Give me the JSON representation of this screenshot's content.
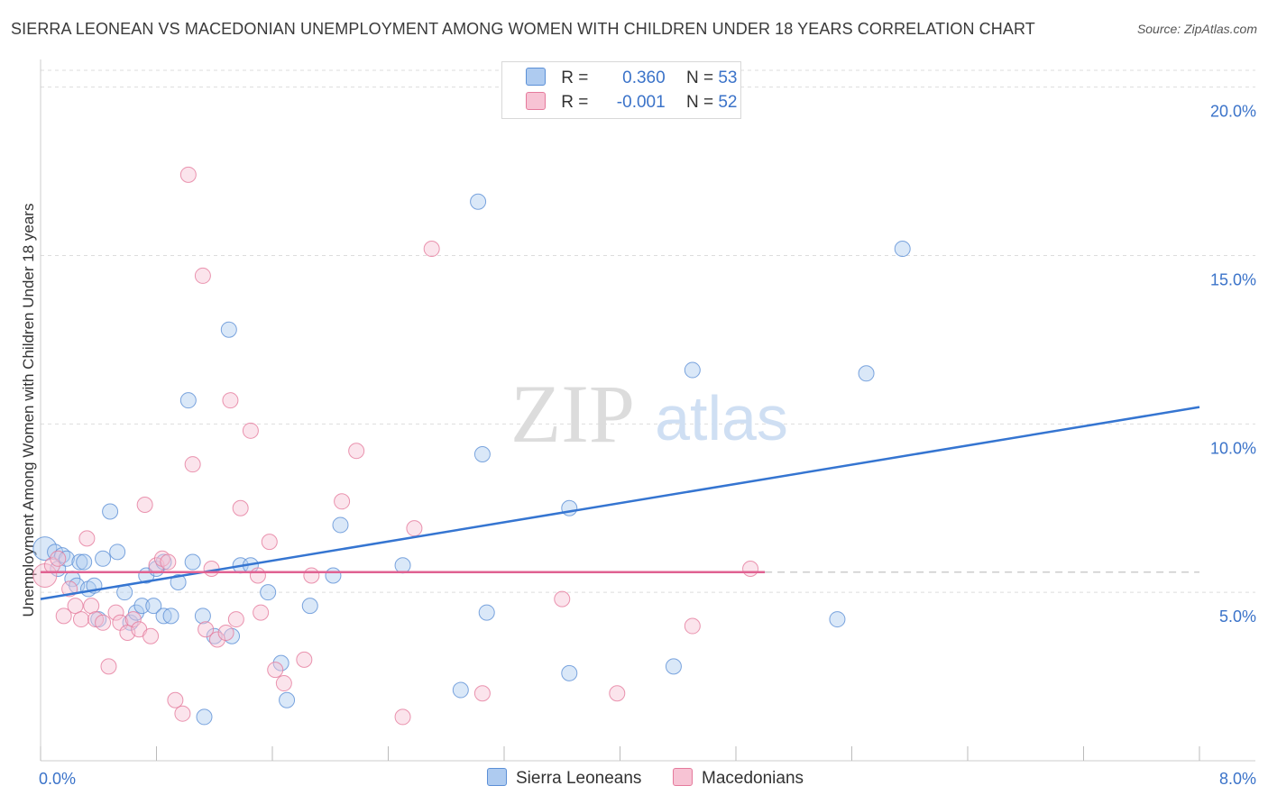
{
  "header": {
    "title": "SIERRA LEONEAN VS MACEDONIAN UNEMPLOYMENT AMONG WOMEN WITH CHILDREN UNDER 18 YEARS CORRELATION CHART",
    "source": "Source: ZipAtlas.com"
  },
  "watermark": {
    "zip": "ZIP",
    "atlas": "atlas"
  },
  "legend": {
    "r_key": "R =",
    "n_key": "N =",
    "series": [
      {
        "name": "Sierra Leoneans",
        "r": "0.360",
        "n": "53",
        "fill": "#aecbf0",
        "stroke": "#5b8fd6"
      },
      {
        "name": "Macedonians",
        "r": "-0.001",
        "n": "52",
        "fill": "#f7c3d4",
        "stroke": "#e57a9c"
      }
    ]
  },
  "chart_data": {
    "type": "scatter",
    "title": "SIERRA LEONEAN VS MACEDONIAN UNEMPLOYMENT AMONG WOMEN WITH CHILDREN UNDER 18 YEARS CORRELATION CHART",
    "xlabel": "",
    "ylabel": "Unemployment Among Women with Children Under 18 years",
    "xlim": [
      0,
      8
    ],
    "ylim": [
      0,
      20.5
    ],
    "x_tick_labels": [
      "0.0%",
      "8.0%"
    ],
    "y_ticks": [
      5,
      10,
      15,
      20
    ],
    "y_tick_labels": [
      "5.0%",
      "10.0%",
      "15.0%",
      "20.0%"
    ],
    "grid": true,
    "series": [
      {
        "name": "Sierra Leoneans",
        "color": "#5b8fd6",
        "trend": {
          "x0": 0.0,
          "y0": 4.8,
          "x1": 8.0,
          "y1": 10.5,
          "color": "#3575d1"
        },
        "points": [
          [
            0.03,
            6.3
          ],
          [
            0.1,
            6.2
          ],
          [
            0.12,
            5.7
          ],
          [
            0.15,
            6.1
          ],
          [
            0.18,
            6.0
          ],
          [
            0.22,
            5.4
          ],
          [
            0.25,
            5.2
          ],
          [
            0.27,
            5.9
          ],
          [
            0.3,
            5.9
          ],
          [
            0.33,
            5.1
          ],
          [
            0.37,
            5.2
          ],
          [
            0.4,
            4.2
          ],
          [
            0.43,
            6.0
          ],
          [
            0.48,
            7.4
          ],
          [
            0.53,
            6.2
          ],
          [
            0.58,
            5.0
          ],
          [
            0.62,
            4.1
          ],
          [
            0.66,
            4.4
          ],
          [
            0.7,
            4.6
          ],
          [
            0.73,
            5.5
          ],
          [
            0.78,
            4.6
          ],
          [
            0.8,
            5.7
          ],
          [
            0.85,
            4.3
          ],
          [
            0.85,
            5.9
          ],
          [
            0.9,
            4.3
          ],
          [
            0.95,
            5.3
          ],
          [
            1.02,
            10.7
          ],
          [
            1.05,
            5.9
          ],
          [
            1.12,
            4.3
          ],
          [
            1.13,
            1.3
          ],
          [
            1.2,
            3.7
          ],
          [
            1.3,
            12.8
          ],
          [
            1.32,
            3.7
          ],
          [
            1.38,
            5.8
          ],
          [
            1.45,
            5.8
          ],
          [
            1.57,
            5.0
          ],
          [
            1.66,
            2.9
          ],
          [
            1.7,
            1.8
          ],
          [
            1.86,
            4.6
          ],
          [
            2.02,
            5.5
          ],
          [
            2.07,
            7.0
          ],
          [
            2.5,
            5.8
          ],
          [
            2.9,
            2.1
          ],
          [
            3.02,
            16.6
          ],
          [
            3.05,
            9.1
          ],
          [
            3.08,
            4.4
          ],
          [
            3.65,
            2.6
          ],
          [
            3.65,
            7.5
          ],
          [
            4.37,
            2.8
          ],
          [
            4.5,
            11.6
          ],
          [
            5.5,
            4.2
          ],
          [
            5.7,
            11.5
          ],
          [
            5.95,
            15.2
          ]
        ]
      },
      {
        "name": "Macedonians",
        "color": "#e57a9c",
        "trend": {
          "x0": 0.0,
          "y0": 5.6,
          "x1": 5.0,
          "y1": 5.6,
          "color": "#e06292",
          "dashed_to": 8.0
        },
        "points": [
          [
            0.03,
            5.5
          ],
          [
            0.08,
            5.8
          ],
          [
            0.12,
            6.0
          ],
          [
            0.16,
            4.3
          ],
          [
            0.2,
            5.1
          ],
          [
            0.24,
            4.6
          ],
          [
            0.28,
            4.2
          ],
          [
            0.32,
            6.6
          ],
          [
            0.35,
            4.6
          ],
          [
            0.38,
            4.2
          ],
          [
            0.43,
            4.1
          ],
          [
            0.47,
            2.8
          ],
          [
            0.52,
            4.4
          ],
          [
            0.55,
            4.1
          ],
          [
            0.6,
            3.8
          ],
          [
            0.64,
            4.2
          ],
          [
            0.68,
            3.9
          ],
          [
            0.72,
            7.6
          ],
          [
            0.76,
            3.7
          ],
          [
            0.8,
            5.8
          ],
          [
            0.84,
            6.0
          ],
          [
            0.88,
            5.9
          ],
          [
            0.93,
            1.8
          ],
          [
            0.98,
            1.4
          ],
          [
            1.02,
            17.4
          ],
          [
            1.05,
            8.8
          ],
          [
            1.12,
            14.4
          ],
          [
            1.14,
            3.9
          ],
          [
            1.18,
            5.7
          ],
          [
            1.22,
            3.6
          ],
          [
            1.28,
            3.8
          ],
          [
            1.31,
            10.7
          ],
          [
            1.35,
            4.2
          ],
          [
            1.38,
            7.5
          ],
          [
            1.45,
            9.8
          ],
          [
            1.5,
            5.5
          ],
          [
            1.52,
            4.4
          ],
          [
            1.58,
            6.5
          ],
          [
            1.62,
            2.7
          ],
          [
            1.68,
            2.3
          ],
          [
            1.82,
            3.0
          ],
          [
            1.87,
            5.5
          ],
          [
            2.08,
            7.7
          ],
          [
            2.18,
            9.2
          ],
          [
            2.5,
            1.3
          ],
          [
            2.58,
            6.9
          ],
          [
            2.7,
            15.2
          ],
          [
            3.05,
            2.0
          ],
          [
            3.6,
            4.8
          ],
          [
            3.98,
            2.0
          ],
          [
            4.5,
            4.0
          ],
          [
            4.9,
            5.7
          ]
        ]
      }
    ]
  }
}
